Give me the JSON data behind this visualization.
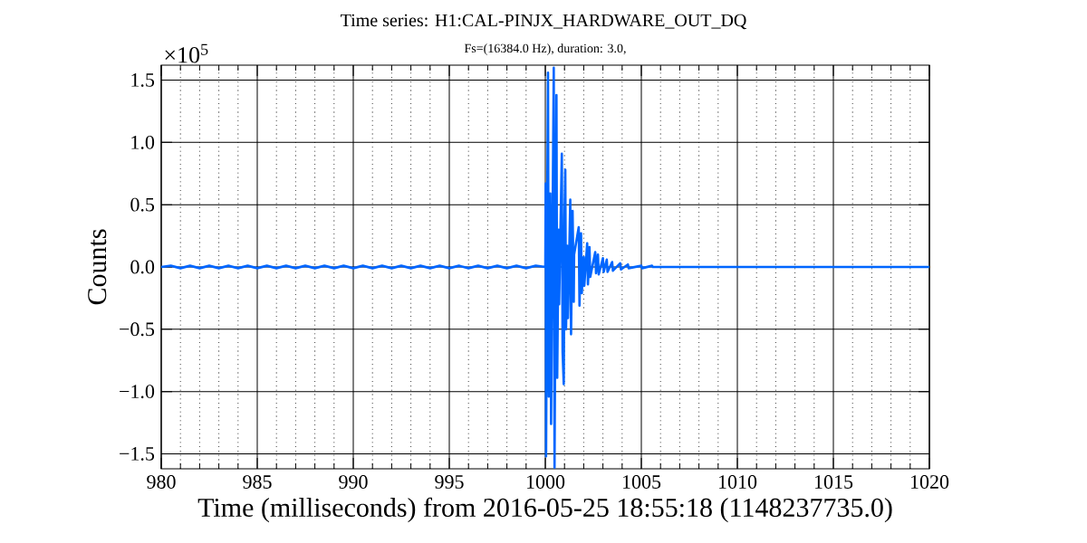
{
  "chart_data": {
    "type": "line",
    "title": "Time series:  H1:CAL-PINJX_HARDWARE_OUT_DQ",
    "subtitle": "Fs=(16384.0 Hz), duration: 3.0,",
    "xlabel": "Time (milliseconds) from 2016-05-25 18:55:18 (1148237735.0)",
    "ylabel": "Counts",
    "annotations": [
      "×10$^{5}$"
    ],
    "xlim": [
      980,
      1020
    ],
    "ylim": [
      -1.62,
      1.62
    ],
    "xticks": [
      980,
      {
        "value": 981,
        "label": null
      },
      {
        "value": 982,
        "label": null
      },
      {
        "value": 983,
        "label": null
      },
      {
        "value": 984,
        "label": null
      },
      985,
      {
        "value": 986,
        "label": null
      },
      {
        "value": 987,
        "label": null
      },
      {
        "value": 988,
        "label": null
      },
      {
        "value": 989,
        "label": null
      },
      990,
      {
        "value": 991,
        "label": null
      },
      {
        "value": 992,
        "label": null
      },
      {
        "value": 993,
        "label": null
      },
      {
        "value": 994,
        "label": null
      },
      995,
      {
        "value": 996,
        "label": null
      },
      {
        "value": 997,
        "label": null
      },
      {
        "value": 998,
        "label": null
      },
      {
        "value": 999,
        "label": null
      },
      1000,
      {
        "value": 1001,
        "label": null
      },
      {
        "value": 1002,
        "label": null
      },
      {
        "value": 1003,
        "label": null
      },
      {
        "value": 1004,
        "label": null
      },
      1005,
      {
        "value": 1006,
        "label": null
      },
      {
        "value": 1007,
        "label": null
      },
      {
        "value": 1008,
        "label": null
      },
      {
        "value": 1009,
        "label": null
      },
      1010,
      {
        "value": 1011,
        "label": null
      },
      {
        "value": 1012,
        "label": null
      },
      {
        "value": 1013,
        "label": null
      },
      {
        "value": 1014,
        "label": null
      },
      1015,
      {
        "value": 1016,
        "label": null
      },
      {
        "value": 1017,
        "label": null
      },
      {
        "value": 1018,
        "label": null
      },
      {
        "value": 1019,
        "label": null
      },
      1020
    ],
    "yticks": [
      {
        "value": -1.5,
        "label": "−1.5"
      },
      {
        "value": -1.0,
        "label": "−1.0"
      },
      {
        "value": -0.5,
        "label": "−0.5"
      },
      {
        "value": 0.0,
        "label": "0.0"
      },
      {
        "value": 0.5,
        "label": "0.5"
      },
      {
        "value": 1.0,
        "label": "1.0"
      },
      {
        "value": 1.5,
        "label": "1.5"
      }
    ],
    "grid": true,
    "series": [
      {
        "color": "#0066ff",
        "x": [
          980,
          980.5,
          981,
          981.5,
          982,
          982.5,
          983,
          983.5,
          984,
          984.5,
          985,
          985.5,
          986,
          986.5,
          987,
          987.5,
          988,
          988.5,
          989,
          989.5,
          990,
          990.5,
          991,
          991.5,
          992,
          992.5,
          993,
          993.5,
          994,
          994.5,
          995,
          995.5,
          996,
          996.5,
          997,
          997.5,
          998,
          998.5,
          999,
          999.5,
          1000.0,
          1000.02,
          1000.04,
          1000.1,
          1000.14,
          1000.18,
          1000.26,
          1000.3,
          1000.44,
          1000.48,
          1000.58,
          1000.62,
          1000.69,
          1000.72,
          1000.86,
          1000.9,
          1000.96,
          1001.0,
          1001.04,
          1001.08,
          1001.14,
          1001.18,
          1001.3,
          1001.34,
          1001.42,
          1001.48,
          1001.5,
          1001.74,
          1001.78,
          1001.86,
          1001.9,
          1002.0,
          1002.03,
          1002.18,
          1002.22,
          1002.3,
          1002.34,
          1002.6,
          1002.64,
          1002.74,
          1002.78,
          1003.0,
          1003.04,
          1003.2,
          1003.24,
          1003.48,
          1003.52,
          1003.9,
          1003.94,
          1004.3,
          1004.34,
          1005.0,
          1005.04,
          1005.56,
          1005.6,
          1020
        ],
        "values": [
          0,
          0.01,
          -0.01,
          0.01,
          -0.01,
          0.01,
          -0.01,
          0.01,
          -0.01,
          0.01,
          -0.01,
          0.01,
          -0.01,
          0.01,
          -0.01,
          0.01,
          -0.01,
          0.01,
          -0.01,
          0.01,
          -0.01,
          0.01,
          -0.01,
          0.01,
          -0.01,
          0.01,
          -0.01,
          0.01,
          -0.01,
          0.01,
          -0.01,
          0.01,
          -0.01,
          0.01,
          -0.01,
          0.01,
          -0.01,
          0.01,
          -0.01,
          0.01,
          0,
          0.67,
          -1.52,
          0.5,
          1.56,
          -1.04,
          0.59,
          -1.26,
          1.6,
          -1.61,
          1.38,
          -0.89,
          0.3,
          -0.3,
          0.91,
          -0.68,
          -0.94,
          0.4,
          0.78,
          -0.5,
          0.17,
          -0.41,
          0.54,
          -0.54,
          0.45,
          -0.28,
          0.1,
          0.32,
          -0.31,
          0.27,
          -0.21,
          0.08,
          -0.15,
          0.19,
          -0.14,
          0.16,
          -0.08,
          0.12,
          -0.05,
          0.1,
          -0.06,
          0.07,
          -0.04,
          0.06,
          -0.04,
          0.04,
          -0.03,
          0.03,
          -0.02,
          0.02,
          -0.01,
          0.01,
          -0.01,
          0.01,
          0,
          0
        ]
      }
    ]
  }
}
